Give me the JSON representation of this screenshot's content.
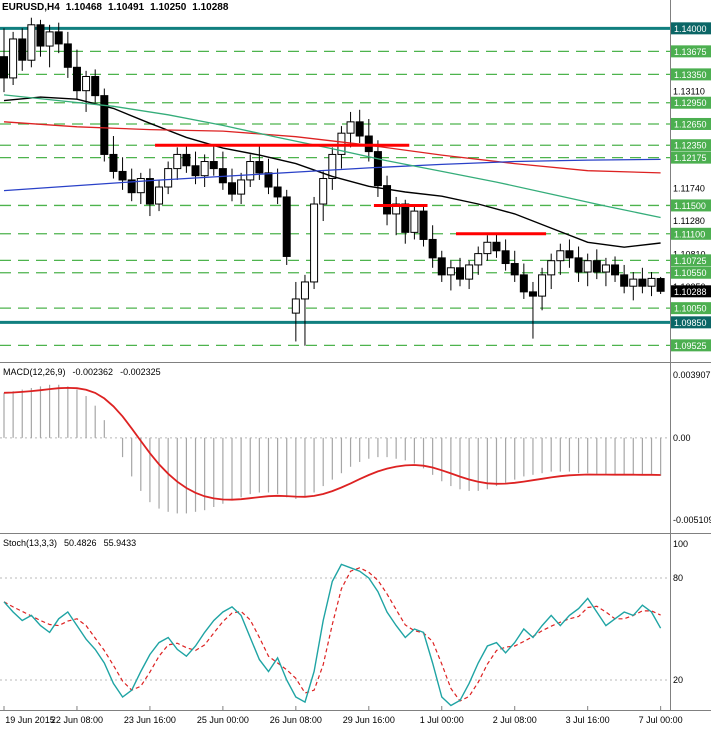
{
  "header": {
    "symbol_period": "EURUSD,H4",
    "open": "1.10468",
    "high": "1.10491",
    "low": "1.10250",
    "close": "1.10288"
  },
  "panels": {
    "macd": {
      "label": "MACD(12,26,9)",
      "value_main": "-0.002362",
      "value_signal": "-0.002325"
    },
    "stoch": {
      "label": "Stoch(13,3,3)",
      "value_main": "50.4826",
      "value_signal": "55.9433"
    }
  },
  "colors": {
    "background": "#FFFFFF",
    "separator": "#808080",
    "grid_green": "#4DB34D",
    "level_box_green": "#4CAF50",
    "sr_teal": "#117F7F",
    "level_box_teal": "#0B6666",
    "current_price_box": "#000000",
    "candle_outline": "#000000",
    "bull_candle": "#FFFFFF",
    "bear_candle": "#000000",
    "resistance_red": "#FF0000",
    "macd_histogram": "#A6A6A6",
    "macd_signal": "#DD2222",
    "stoch_main": "#1FA4A4",
    "stoch_signal": "#DD2222",
    "level_silver": "#B8B8B8",
    "axis_text": "#000000"
  },
  "chart_data": [
    {
      "type": "candlestick",
      "title": "EURUSD,H4",
      "ohlc_current": [
        1.10468,
        1.10491,
        1.1025,
        1.10288
      ],
      "y_range": [
        1.0929,
        1.144
      ],
      "x_labels": [
        {
          "bar": 0,
          "text": "19 Jun 2015"
        },
        {
          "bar": 8,
          "text": "22 Jun 08:00"
        },
        {
          "bar": 16,
          "text": "23 Jun 16:00"
        },
        {
          "bar": 24,
          "text": "25 Jun 00:00"
        },
        {
          "bar": 32,
          "text": "26 Jun 08:00"
        },
        {
          "bar": 40,
          "text": "29 Jun 16:00"
        },
        {
          "bar": 48,
          "text": "1 Jul 00:00"
        },
        {
          "bar": 56,
          "text": "2 Jul 08:00"
        },
        {
          "bar": 64,
          "text": "3 Jul 16:00"
        },
        {
          "bar": 72,
          "text": "7 Jul 00:00"
        }
      ],
      "levels": [
        {
          "label": "1.14000",
          "price": 1.14,
          "style": "teal"
        },
        {
          "label": "1.13675",
          "price": 1.13675,
          "style": "green"
        },
        {
          "label": "1.13350",
          "price": 1.1335,
          "style": "green"
        },
        {
          "label": "1.13110",
          "price": 1.1311,
          "style": "plain"
        },
        {
          "label": "1.12950",
          "price": 1.1295,
          "style": "green"
        },
        {
          "label": "1.12650",
          "price": 1.1265,
          "style": "green"
        },
        {
          "label": "1.12350",
          "price": 1.1235,
          "style": "green"
        },
        {
          "label": "1.12175",
          "price": 1.12175,
          "style": "green"
        },
        {
          "label": "1.11740",
          "price": 1.1174,
          "style": "plain"
        },
        {
          "label": "1.11500",
          "price": 1.115,
          "style": "green"
        },
        {
          "label": "1.11280",
          "price": 1.1128,
          "style": "plain"
        },
        {
          "label": "1.11100",
          "price": 1.111,
          "style": "green"
        },
        {
          "label": "1.10810",
          "price": 1.1081,
          "style": "plain"
        },
        {
          "label": "1.10725",
          "price": 1.10725,
          "style": "green"
        },
        {
          "label": "1.10550",
          "price": 1.1055,
          "style": "green"
        },
        {
          "label": "1.10350",
          "price": 1.1035,
          "style": "plain"
        },
        {
          "label": "1.10288",
          "price": 1.10288,
          "style": "current"
        },
        {
          "label": "1.10050",
          "price": 1.1005,
          "style": "green"
        },
        {
          "label": "1.09850",
          "price": 1.0985,
          "style": "teal"
        },
        {
          "label": "1.09525",
          "price": 1.09525,
          "style": "green"
        }
      ],
      "resistance_segments": [
        {
          "price": 1.1235,
          "from_bar": 17,
          "to_bar": 44
        },
        {
          "price": 1.115,
          "from_bar": 41,
          "to_bar": 46
        },
        {
          "price": 1.111,
          "from_bar": 50,
          "to_bar": 59
        }
      ],
      "moving_averages": [
        {
          "name": "ma-fast-black",
          "color": "#000000",
          "points": [
            [
              0,
              1.1298
            ],
            [
              4,
              1.1303
            ],
            [
              8,
              1.13
            ],
            [
              12,
              1.1287
            ],
            [
              16,
              1.1266
            ],
            [
              20,
              1.1246
            ],
            [
              24,
              1.1231
            ],
            [
              28,
              1.1221
            ],
            [
              32,
              1.1209
            ],
            [
              36,
              1.1191
            ],
            [
              40,
              1.1177
            ],
            [
              44,
              1.1169
            ],
            [
              48,
              1.1163
            ],
            [
              52,
              1.1152
            ],
            [
              56,
              1.1138
            ],
            [
              60,
              1.1118
            ],
            [
              64,
              1.1098
            ],
            [
              68,
              1.1091
            ],
            [
              72,
              1.1097
            ]
          ]
        },
        {
          "name": "ma-slow-red",
          "color": "#DD2222",
          "points": [
            [
              0,
              1.1268
            ],
            [
              8,
              1.1261
            ],
            [
              16,
              1.1257
            ],
            [
              24,
              1.1255
            ],
            [
              32,
              1.1247
            ],
            [
              40,
              1.1235
            ],
            [
              48,
              1.1221
            ],
            [
              56,
              1.1209
            ],
            [
              64,
              1.1199
            ],
            [
              72,
              1.1196
            ]
          ]
        },
        {
          "name": "ma-long-blue",
          "color": "#2A41C8",
          "points": [
            [
              0,
              1.1171
            ],
            [
              8,
              1.1178
            ],
            [
              16,
              1.1185
            ],
            [
              24,
              1.1191
            ],
            [
              32,
              1.1197
            ],
            [
              40,
              1.1203
            ],
            [
              48,
              1.1208
            ],
            [
              56,
              1.1212
            ],
            [
              64,
              1.1214
            ],
            [
              72,
              1.1215
            ]
          ]
        },
        {
          "name": "ma-mid-green",
          "color": "#35AD7A",
          "points": [
            [
              0,
              1.1306
            ],
            [
              6,
              1.1298
            ],
            [
              12,
              1.129
            ],
            [
              18,
              1.1278
            ],
            [
              24,
              1.1263
            ],
            [
              30,
              1.1246
            ],
            [
              36,
              1.123
            ],
            [
              42,
              1.1213
            ],
            [
              48,
              1.1198
            ],
            [
              54,
              1.1183
            ],
            [
              60,
              1.1166
            ],
            [
              66,
              1.1149
            ],
            [
              72,
              1.1133
            ]
          ]
        }
      ],
      "candles": [
        [
          1.136,
          1.14,
          1.131,
          1.133
        ],
        [
          1.133,
          1.1395,
          1.132,
          1.1385
        ],
        [
          1.1385,
          1.14,
          1.134,
          1.1355
        ],
        [
          1.1355,
          1.1415,
          1.1345,
          1.1405
        ],
        [
          1.1405,
          1.1412,
          1.136,
          1.1375
        ],
        [
          1.1375,
          1.1405,
          1.1345,
          1.1395
        ],
        [
          1.1395,
          1.1408,
          1.1365,
          1.1378
        ],
        [
          1.1378,
          1.1395,
          1.133,
          1.1345
        ],
        [
          1.1345,
          1.137,
          1.13,
          1.1312
        ],
        [
          1.1312,
          1.134,
          1.1282,
          1.1332
        ],
        [
          1.1332,
          1.1342,
          1.1295,
          1.1305
        ],
        [
          1.1305,
          1.1315,
          1.1212,
          1.1222
        ],
        [
          1.1222,
          1.1248,
          1.1188,
          1.1198
        ],
        [
          1.1198,
          1.1218,
          1.1172,
          1.1186
        ],
        [
          1.1186,
          1.1202,
          1.1156,
          1.1168
        ],
        [
          1.1168,
          1.1196,
          1.1152,
          1.1188
        ],
        [
          1.1188,
          1.1202,
          1.1135,
          1.1152
        ],
        [
          1.1152,
          1.1186,
          1.1142,
          1.1176
        ],
        [
          1.1176,
          1.1212,
          1.1166,
          1.1202
        ],
        [
          1.1202,
          1.1232,
          1.1186,
          1.1222
        ],
        [
          1.1222,
          1.1236,
          1.1196,
          1.1206
        ],
        [
          1.1206,
          1.1226,
          1.118,
          1.1192
        ],
        [
          1.1192,
          1.1222,
          1.1176,
          1.1212
        ],
        [
          1.1212,
          1.1235,
          1.1192,
          1.1202
        ],
        [
          1.1202,
          1.1226,
          1.1172,
          1.1182
        ],
        [
          1.1182,
          1.1202,
          1.1156,
          1.1166
        ],
        [
          1.1166,
          1.1196,
          1.1152,
          1.1186
        ],
        [
          1.1186,
          1.1222,
          1.1176,
          1.1212
        ],
        [
          1.1212,
          1.1235,
          1.1186,
          1.1196
        ],
        [
          1.1196,
          1.1216,
          1.1166,
          1.1176
        ],
        [
          1.1176,
          1.1202,
          1.1152,
          1.1162
        ],
        [
          1.1162,
          1.1172,
          1.1066,
          1.1078
        ],
        [
          1.0998,
          1.1042,
          1.0958,
          1.1018
        ],
        [
          1.1018,
          1.1052,
          1.0952,
          1.1042
        ],
        [
          1.1042,
          1.1162,
          1.1032,
          1.1152
        ],
        [
          1.1152,
          1.1198,
          1.1128,
          1.1188
        ],
        [
          1.1188,
          1.1232,
          1.1172,
          1.1222
        ],
        [
          1.1222,
          1.1262,
          1.1202,
          1.1252
        ],
        [
          1.1252,
          1.1282,
          1.1232,
          1.1268
        ],
        [
          1.1268,
          1.1285,
          1.1238,
          1.1248
        ],
        [
          1.1248,
          1.1272,
          1.1212,
          1.1226
        ],
        [
          1.1226,
          1.1242,
          1.1162,
          1.1178
        ],
        [
          1.1178,
          1.1192,
          1.1122,
          1.1138
        ],
        [
          1.1138,
          1.1162,
          1.1108,
          1.1152
        ],
        [
          1.1152,
          1.1158,
          1.1096,
          1.1112
        ],
        [
          1.1112,
          1.115,
          1.1102,
          1.1142
        ],
        [
          1.1142,
          1.115,
          1.1092,
          1.1102
        ],
        [
          1.1102,
          1.1122,
          1.1062,
          1.1076
        ],
        [
          1.1076,
          1.1086,
          1.1042,
          1.1052
        ],
        [
          1.1052,
          1.1072,
          1.103,
          1.1062
        ],
        [
          1.1062,
          1.1076,
          1.1036,
          1.1046
        ],
        [
          1.1046,
          1.1072,
          1.1032,
          1.1066
        ],
        [
          1.1066,
          1.1092,
          1.1052,
          1.1082
        ],
        [
          1.1082,
          1.1108,
          1.1072,
          1.1098
        ],
        [
          1.1098,
          1.111,
          1.1076,
          1.1086
        ],
        [
          1.1086,
          1.1102,
          1.1058,
          1.1068
        ],
        [
          1.1068,
          1.1086,
          1.1042,
          1.1052
        ],
        [
          1.1052,
          1.1068,
          1.1018,
          1.1028
        ],
        [
          1.1028,
          1.1042,
          1.0962,
          1.1022
        ],
        [
          1.1022,
          1.1062,
          1.1002,
          1.1052
        ],
        [
          1.1052,
          1.1082,
          1.1032,
          1.1072
        ],
        [
          1.1072,
          1.1096,
          1.1052,
          1.1086
        ],
        [
          1.1086,
          1.1102,
          1.1062,
          1.1076
        ],
        [
          1.1076,
          1.1092,
          1.1042,
          1.1056
        ],
        [
          1.1056,
          1.1082,
          1.1036,
          1.1072
        ],
        [
          1.1072,
          1.1088,
          1.1046,
          1.1056
        ],
        [
          1.1056,
          1.1076,
          1.1036,
          1.1066
        ],
        [
          1.1066,
          1.1078,
          1.1042,
          1.1052
        ],
        [
          1.1052,
          1.1066,
          1.1026,
          1.1036
        ],
        [
          1.1036,
          1.1056,
          1.1016,
          1.1046
        ],
        [
          1.1046,
          1.1062,
          1.1026,
          1.1036
        ],
        [
          1.1036,
          1.1056,
          1.1022,
          1.1047
        ],
        [
          1.10468,
          1.10491,
          1.1025,
          1.10288
        ]
      ]
    },
    {
      "type": "bar",
      "name": "MACD(12,26,9)",
      "axis_labels": [
        "0.003907",
        "0.00",
        "-0.005109"
      ],
      "axis_values": [
        0.003907,
        0,
        -0.005109
      ],
      "signal_period": 9,
      "main": [
        0.0028,
        0.0029,
        0.003,
        0.0031,
        0.0032,
        0.0033,
        0.0033,
        0.0032,
        0.003,
        0.0026,
        0.002,
        0.0011,
        0.0,
        -0.0012,
        -0.0024,
        -0.0033,
        -0.004,
        -0.0044,
        -0.0046,
        -0.0047,
        -0.0047,
        -0.0046,
        -0.0045,
        -0.0043,
        -0.0041,
        -0.0039,
        -0.0037,
        -0.0035,
        -0.0034,
        -0.0034,
        -0.0035,
        -0.0037,
        -0.0038,
        -0.0037,
        -0.0034,
        -0.003,
        -0.0026,
        -0.0022,
        -0.0018,
        -0.0015,
        -0.0013,
        -0.0012,
        -0.0012,
        -0.0013,
        -0.0014,
        -0.0016,
        -0.0019,
        -0.0023,
        -0.0027,
        -0.003,
        -0.0032,
        -0.0033,
        -0.0033,
        -0.0032,
        -0.003,
        -0.0028,
        -0.0026,
        -0.0024,
        -0.0023,
        -0.0022,
        -0.0021,
        -0.0021,
        -0.0021,
        -0.0022,
        -0.0022,
        -0.0023,
        -0.0023,
        -0.0023,
        -0.0023,
        -0.0023,
        -0.0023,
        -0.0023,
        -0.002362
      ]
    },
    {
      "type": "line",
      "name": "Stoch(13,3,3)",
      "axis_labels": [
        "100",
        "80",
        "20"
      ],
      "axis_values": [
        100,
        80,
        20
      ],
      "level_lines": [
        80,
        20
      ],
      "signal_period": 3,
      "main": [
        66,
        60,
        55,
        58,
        52,
        48,
        56,
        60,
        52,
        44,
        38,
        30,
        18,
        10,
        14,
        25,
        35,
        42,
        45,
        38,
        34,
        40,
        48,
        55,
        60,
        63,
        58,
        45,
        32,
        25,
        33,
        20,
        10,
        7,
        25,
        55,
        78,
        88,
        86,
        84,
        80,
        72,
        60,
        52,
        45,
        50,
        48,
        30,
        10,
        5,
        8,
        18,
        30,
        40,
        42,
        36,
        42,
        50,
        45,
        52,
        58,
        52,
        58,
        62,
        68,
        60,
        52,
        56,
        60,
        58,
        64,
        60,
        50.4826
      ]
    }
  ]
}
